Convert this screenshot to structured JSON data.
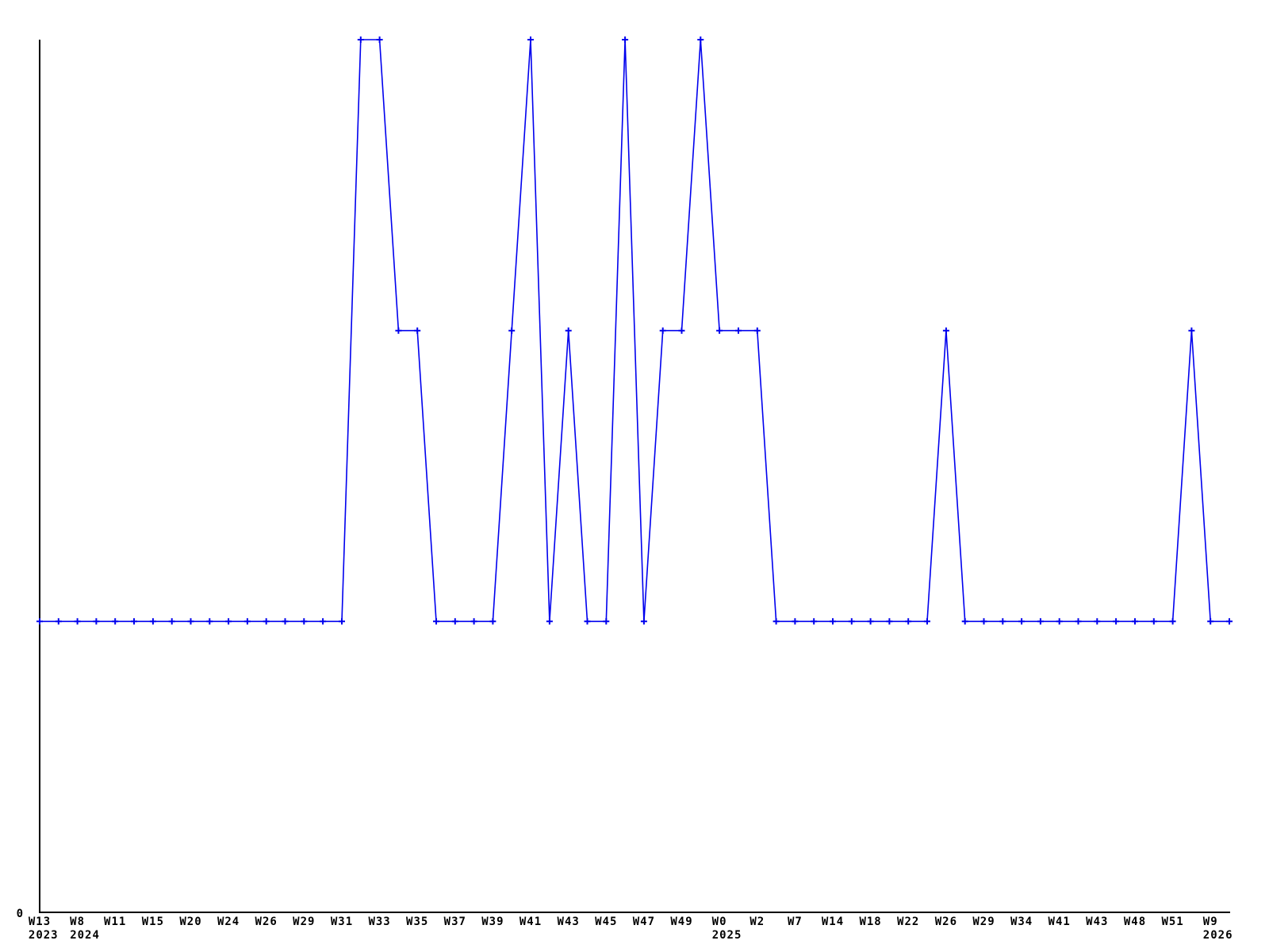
{
  "chart_data": {
    "type": "line",
    "title": "",
    "grid": false,
    "legend": null,
    "line_color": "#0000ee",
    "axis_color": "#000000",
    "marker_style": "plus",
    "ylim": [
      0,
      3
    ],
    "y_tick_labels": [
      "0"
    ],
    "x_tick_note": "labels shown under every second data point; year shown under first week of that year",
    "points": [
      {
        "label": "W13",
        "year": "2023",
        "value": 1
      },
      {
        "label": "",
        "value": 1
      },
      {
        "label": "W8",
        "year": "2024",
        "value": 1
      },
      {
        "label": "",
        "value": 1
      },
      {
        "label": "W11",
        "value": 1
      },
      {
        "label": "",
        "value": 1
      },
      {
        "label": "W15",
        "value": 1
      },
      {
        "label": "",
        "value": 1
      },
      {
        "label": "W20",
        "value": 1
      },
      {
        "label": "",
        "value": 1
      },
      {
        "label": "W24",
        "value": 1
      },
      {
        "label": "",
        "value": 1
      },
      {
        "label": "W26",
        "value": 1
      },
      {
        "label": "",
        "value": 1
      },
      {
        "label": "W29",
        "value": 1
      },
      {
        "label": "",
        "value": 1
      },
      {
        "label": "W31",
        "value": 1
      },
      {
        "label": "",
        "value": 3
      },
      {
        "label": "W33",
        "value": 3
      },
      {
        "label": "",
        "value": 2
      },
      {
        "label": "W35",
        "value": 2
      },
      {
        "label": "",
        "value": 1
      },
      {
        "label": "W37",
        "value": 1
      },
      {
        "label": "",
        "value": 1
      },
      {
        "label": "W39",
        "value": 1
      },
      {
        "label": "",
        "value": 2
      },
      {
        "label": "W41",
        "value": 3
      },
      {
        "label": "",
        "value": 1
      },
      {
        "label": "W43",
        "value": 2
      },
      {
        "label": "",
        "value": 1
      },
      {
        "label": "W45",
        "value": 1
      },
      {
        "label": "",
        "value": 3
      },
      {
        "label": "W47",
        "value": 1
      },
      {
        "label": "",
        "value": 2
      },
      {
        "label": "W49",
        "value": 2
      },
      {
        "label": "",
        "value": 3
      },
      {
        "label": "W0",
        "year": "2025",
        "value": 2
      },
      {
        "label": "",
        "value": 2
      },
      {
        "label": "W2",
        "value": 2
      },
      {
        "label": "",
        "value": 1
      },
      {
        "label": "W7",
        "value": 1
      },
      {
        "label": "",
        "value": 1
      },
      {
        "label": "W14",
        "value": 1
      },
      {
        "label": "",
        "value": 1
      },
      {
        "label": "W18",
        "value": 1
      },
      {
        "label": "",
        "value": 1
      },
      {
        "label": "W22",
        "value": 1
      },
      {
        "label": "",
        "value": 1
      },
      {
        "label": "W26",
        "value": 2
      },
      {
        "label": "",
        "value": 1
      },
      {
        "label": "W29",
        "value": 1
      },
      {
        "label": "",
        "value": 1
      },
      {
        "label": "W34",
        "value": 1
      },
      {
        "label": "",
        "value": 1
      },
      {
        "label": "W41",
        "value": 1
      },
      {
        "label": "",
        "value": 1
      },
      {
        "label": "W43",
        "value": 1
      },
      {
        "label": "",
        "value": 1
      },
      {
        "label": "W48",
        "value": 1
      },
      {
        "label": "",
        "value": 1
      },
      {
        "label": "W51",
        "value": 1
      },
      {
        "label": "",
        "value": 2
      },
      {
        "label": "W9",
        "year": "2026",
        "value": 1
      },
      {
        "label": "",
        "value": 1
      }
    ]
  }
}
